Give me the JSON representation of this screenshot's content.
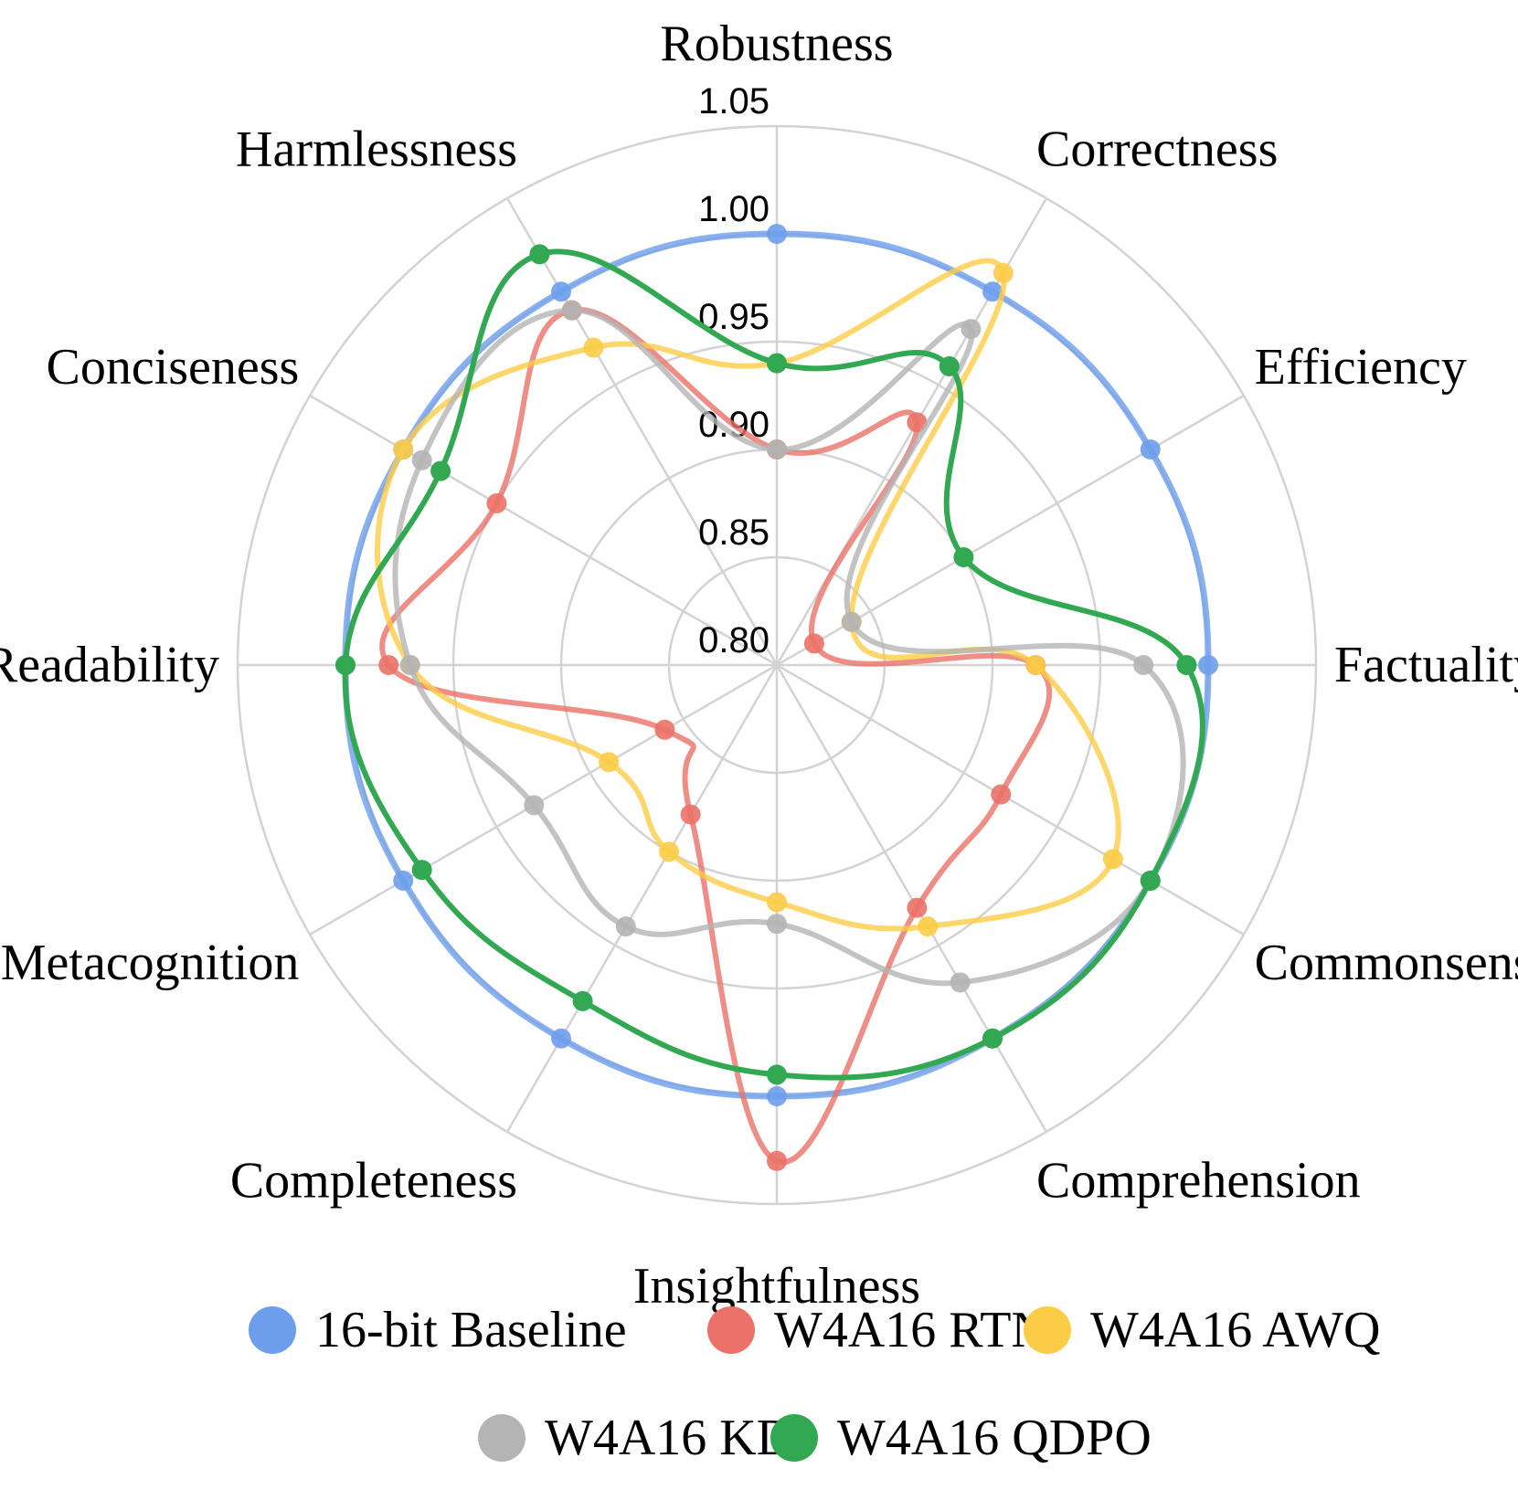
{
  "chart_data": {
    "type": "radar",
    "axes": [
      "Robustness",
      "Correctness",
      "Efficiency",
      "Factuality",
      "Commonsense",
      "Comprehension",
      "Insightfulness",
      "Completeness",
      "Metacognition",
      "Readability",
      "Conciseness",
      "Harmlessness"
    ],
    "rlim": [
      0.8,
      1.05
    ],
    "ticks": [
      "0.80",
      "0.85",
      "0.90",
      "0.95",
      "1.00",
      "1.05"
    ],
    "grid": true,
    "legend_position": "bottom",
    "series": [
      {
        "name": "16-bit Baseline",
        "color": "#6d9eeb",
        "values": [
          1.0,
          1.0,
          1.0,
          1.0,
          1.0,
          1.0,
          1.0,
          1.0,
          1.0,
          1.0,
          1.0,
          1.0
        ]
      },
      {
        "name": "W4A16 RTN",
        "color": "#ea7268",
        "values": [
          0.9,
          0.93,
          0.82,
          0.92,
          0.92,
          0.93,
          1.03,
          0.88,
          0.86,
          0.98,
          0.95,
          0.99
        ]
      },
      {
        "name": "W4A16 AWQ",
        "color": "#fccc47",
        "values": [
          0.94,
          1.01,
          0.84,
          0.92,
          0.98,
          0.94,
          0.91,
          0.9,
          0.89,
          0.97,
          1.0,
          0.97
        ]
      },
      {
        "name": "W4A16 KD",
        "color": "#b4b4b4",
        "values": [
          0.9,
          0.98,
          0.84,
          0.97,
          1.0,
          0.97,
          0.92,
          0.94,
          0.93,
          0.97,
          0.99,
          0.99
        ]
      },
      {
        "name": "W4A16 QDPO",
        "color": "#33a853",
        "values": [
          0.94,
          0.96,
          0.9,
          0.99,
          1.0,
          1.0,
          0.99,
          0.98,
          0.99,
          1.0,
          0.98,
          1.02
        ]
      }
    ]
  }
}
